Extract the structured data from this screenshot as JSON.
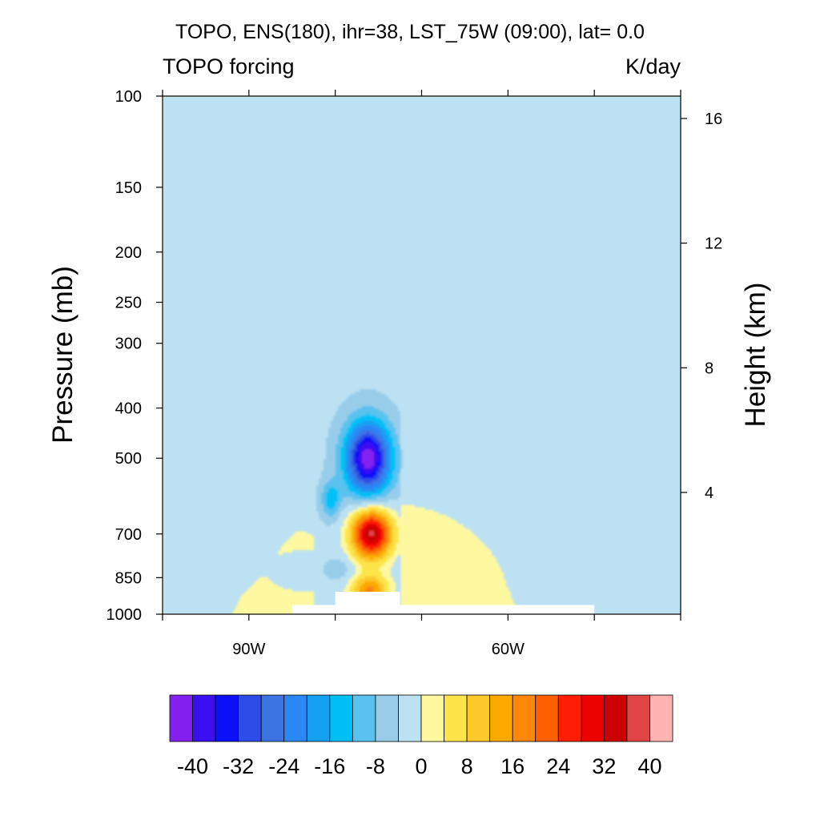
{
  "chart_data": {
    "type": "heatmap",
    "title": "TOPO, ENS(180), ihr=38, LST_75W (09:00), lat=  0.0",
    "left_subtitle": "TOPO forcing",
    "right_subtitle": "K/day",
    "ylabel": "Pressure (mb)",
    "y2label": "Height (km)",
    "xlabel": "",
    "y_scale": "log",
    "ylim": [
      1000,
      100
    ],
    "y_ticks": [
      "100",
      "150",
      "200",
      "250",
      "300",
      "400",
      "500",
      "700",
      "850",
      "1000"
    ],
    "y2_ticks": [
      "16",
      "12",
      "8",
      "4"
    ],
    "x_ticks": [
      "90W",
      "60W"
    ],
    "xlim": [
      -100,
      -40
    ],
    "background_value": 0,
    "regions": [
      {
        "feature": "weak cooling column",
        "lon_range": [
          -82.5,
          -72.5
        ],
        "p_range": [
          1000,
          100
        ],
        "value": -3
      },
      {
        "feature": "cooling core",
        "lon": -76.2,
        "p": 500,
        "value": -40
      },
      {
        "feature": "weak cooling",
        "lon": -80.5,
        "p": 600,
        "value": -12
      },
      {
        "feature": "heating core",
        "lon": -75.8,
        "p": 700,
        "value": 40
      },
      {
        "feature": "low-level heating",
        "lon": -76,
        "p": 900,
        "value": 20
      },
      {
        "feature": "low-level weak cooling",
        "lon": -79.5,
        "p": 820,
        "value": -4
      }
    ],
    "topography_mask": "white surface blocks at the bottom between about 85W and 50W",
    "colorbar": {
      "boundary_labels": [
        "-40",
        "-32",
        "-24",
        "-16",
        "-8",
        "0",
        "8",
        "16",
        "24",
        "32",
        "40"
      ],
      "levels": [
        -40,
        -36,
        -32,
        -28,
        -24,
        -20,
        -16,
        -12,
        -8,
        -4,
        0,
        4,
        8,
        12,
        16,
        20,
        24,
        28,
        32,
        36,
        40
      ],
      "colors": [
        "#8420f0",
        "#3a10f0",
        "#0c10f8",
        "#2d4ce8",
        "#3b73e3",
        "#2b87f6",
        "#14a1f2",
        "#00c1f7",
        "#5ac2ef",
        "#98cdea",
        "#bce1f2",
        "#fef8a0",
        "#fde449",
        "#fdc92a",
        "#fcaa00",
        "#fd8707",
        "#fe6000",
        "#fe1e06",
        "#ec0101",
        "#cd0001",
        "#e04444",
        "#feb3b3"
      ]
    }
  }
}
